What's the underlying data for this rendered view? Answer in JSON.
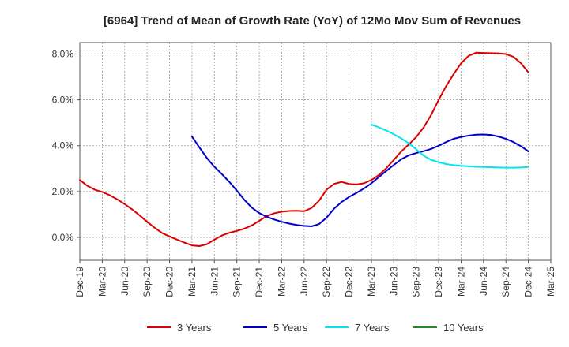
{
  "chart_data": {
    "type": "line",
    "title": "[6964]  Trend of Mean of Growth Rate (YoY) of 12Mo Mov Sum of Revenues",
    "xlabel": "",
    "ylabel": "",
    "ylim": [
      -1.0,
      8.5
    ],
    "yticks": [
      0,
      2,
      4,
      6,
      8
    ],
    "ytick_labels": [
      "0.0%",
      "2.0%",
      "4.0%",
      "6.0%",
      "8.0%"
    ],
    "x_start": "Dec-19",
    "x_end": "Mar-25",
    "x_tick_labels": [
      "Dec-19",
      "Mar-20",
      "Jun-20",
      "Sep-20",
      "Dec-20",
      "Mar-21",
      "Jun-21",
      "Sep-21",
      "Dec-21",
      "Mar-22",
      "Jun-22",
      "Sep-22",
      "Dec-22",
      "Mar-23",
      "Jun-23",
      "Sep-23",
      "Dec-23",
      "Mar-24",
      "Jun-24",
      "Sep-24",
      "Dec-24",
      "Mar-25"
    ],
    "grid": true,
    "legend_position": "bottom",
    "series": [
      {
        "name": "3 Years",
        "color": "#dd0000",
        "start_index": 0,
        "values": [
          2.5,
          2.25,
          2.08,
          1.98,
          1.84,
          1.66,
          1.45,
          1.22,
          0.96,
          0.68,
          0.42,
          0.19,
          0.04,
          -0.1,
          -0.23,
          -0.35,
          -0.38,
          -0.3,
          -0.1,
          0.08,
          0.2,
          0.28,
          0.38,
          0.52,
          0.72,
          0.93,
          1.05,
          1.12,
          1.15,
          1.16,
          1.14,
          1.28,
          1.6,
          2.08,
          2.33,
          2.42,
          2.33,
          2.31,
          2.36,
          2.5,
          2.72,
          3.02,
          3.38,
          3.75,
          4.05,
          4.38,
          4.8,
          5.35,
          6.0,
          6.6,
          7.12,
          7.6,
          7.92,
          8.06,
          8.05,
          8.04,
          8.03,
          8.0,
          7.88,
          7.6,
          7.2
        ]
      },
      {
        "name": "5 Years",
        "color": "#0000cc",
        "start_index": 15,
        "values": [
          4.4,
          3.92,
          3.46,
          3.08,
          2.76,
          2.42,
          2.04,
          1.64,
          1.3,
          1.06,
          0.9,
          0.78,
          0.68,
          0.6,
          0.54,
          0.5,
          0.48,
          0.58,
          0.86,
          1.25,
          1.54,
          1.76,
          1.94,
          2.13,
          2.36,
          2.63,
          2.9,
          3.16,
          3.41,
          3.58,
          3.68,
          3.76,
          3.86,
          4.0,
          4.16,
          4.3,
          4.38,
          4.44,
          4.48,
          4.49,
          4.47,
          4.4,
          4.3,
          4.16,
          3.98,
          3.75
        ]
      },
      {
        "name": "7 Years",
        "color": "#00e5ee",
        "start_index": 39,
        "values": [
          4.92,
          4.8,
          4.66,
          4.5,
          4.32,
          4.1,
          3.84,
          3.56,
          3.38,
          3.28,
          3.2,
          3.15,
          3.12,
          3.1,
          3.08,
          3.07,
          3.06,
          3.05,
          3.04,
          3.04,
          3.05,
          3.07
        ]
      },
      {
        "name": "10 Years",
        "color": "#228b22",
        "start_index": 0,
        "values": []
      }
    ]
  }
}
